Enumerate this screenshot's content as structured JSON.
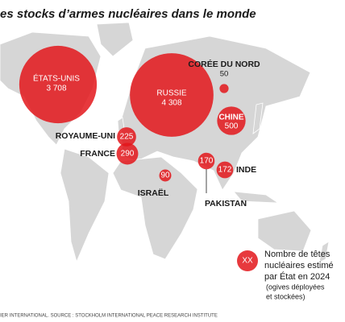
{
  "header": {
    "title": "es stocks d’armes nucléaires dans le monde"
  },
  "countries": [
    {
      "name": "ÉTATS-UNIS",
      "value": 3708,
      "label": "3 708"
    },
    {
      "name": "RUSSIE",
      "value": 4308,
      "label": "4 308"
    },
    {
      "name": "CHINE",
      "value": 500
    },
    {
      "name": "CORÉE DU NORD",
      "value": 50
    },
    {
      "name": "ROYAUME-UNI",
      "value": 225
    },
    {
      "name": "FRANCE",
      "value": 290
    },
    {
      "name": "ISRAËL",
      "value": 90
    },
    {
      "name": "PAKISTAN",
      "value": 170
    },
    {
      "name": "INDE",
      "value": 172
    }
  ],
  "legend": {
    "symbol": "XX",
    "lines": [
      "Nombre de têtes",
      "nucléaires estimé",
      "par État en 2024"
    ],
    "note": [
      "(ogives déployées",
      "et stockées)"
    ]
  },
  "source": "IER INTERNATIONAL. SOURCE : STOCKHOLM INTERNATIONAL PEACE RESEARCH INSTITUTE"
}
